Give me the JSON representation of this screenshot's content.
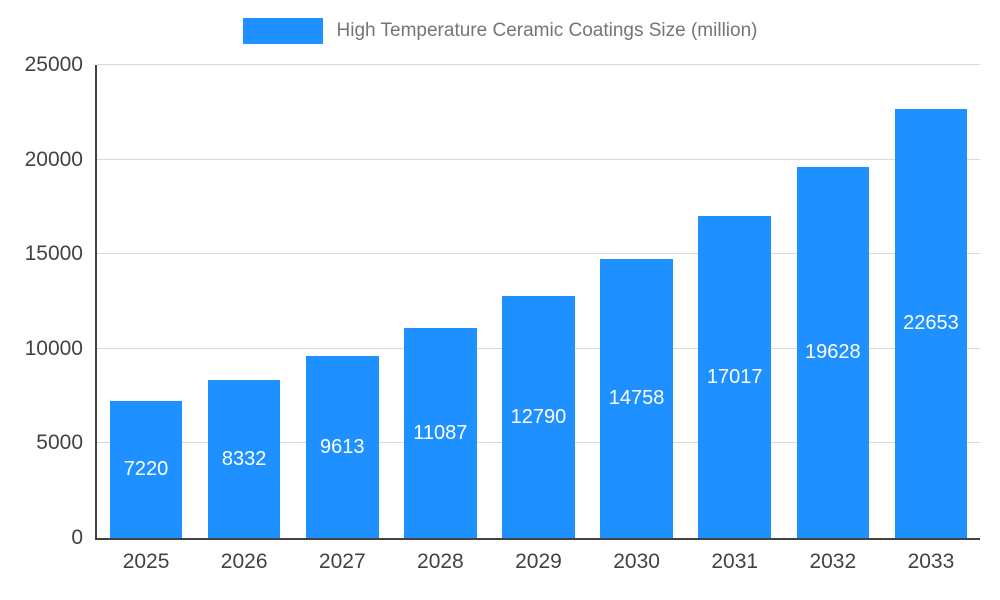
{
  "chart_data": {
    "type": "bar",
    "title": "High Temperature Ceramic Coatings Size (million)",
    "categories": [
      "2025",
      "2026",
      "2027",
      "2028",
      "2029",
      "2030",
      "2031",
      "2032",
      "2033"
    ],
    "values": [
      7220,
      8332,
      9613,
      11087,
      12790,
      14758,
      17017,
      19628,
      22653
    ],
    "ylim": [
      0,
      25000
    ],
    "yticks": [
      0,
      5000,
      10000,
      15000,
      20000,
      25000
    ],
    "bar_color": "#1e90ff",
    "value_label_color": "#ffffff",
    "grid": true,
    "legend_position": "top"
  }
}
